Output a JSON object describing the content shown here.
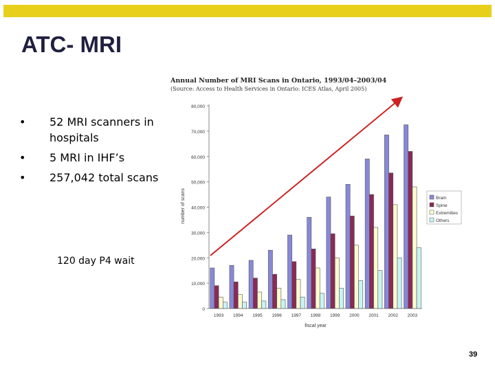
{
  "slide": {
    "title": "ATC- MRI",
    "bullets": [
      {
        "marker": "•",
        "text": "52 MRI scanners in hospitals"
      },
      {
        "marker": "•",
        "text": " 5 MRI in IHF’s"
      },
      {
        "marker": "•",
        "text": "257,042 total scans"
      }
    ],
    "note": "120  day P4 wait",
    "page_number": "39",
    "accent_color": "#e8cf1c",
    "title_color": "#1f1f3f"
  },
  "chart_data": {
    "type": "bar",
    "title": "Annual Number of MRI Scans in Ontario, 1993/04–2003/04",
    "subtitle": "(Source: Access to Health Services in Ontario: ICES Atlas, April 2005)",
    "xlabel": "fiscal year",
    "ylabel": "number of scans",
    "ylim": [
      0,
      80000
    ],
    "yticks": [
      "0",
      "10,000",
      "20,000",
      "30,000",
      "40,000",
      "50,000",
      "60,000",
      "70,000",
      "80,000"
    ],
    "categories": [
      "1993",
      "1994",
      "1995",
      "1996",
      "1997",
      "1998",
      "1999",
      "2000",
      "2001",
      "2002",
      "2003"
    ],
    "series": [
      {
        "name": "Brain",
        "color": "#8888d8",
        "values": [
          16000,
          17000,
          19000,
          23000,
          29000,
          36000,
          44000,
          49000,
          59000,
          68500,
          72500
        ]
      },
      {
        "name": "Spine",
        "color": "#8a2a55",
        "values": [
          9000,
          10500,
          12000,
          13500,
          18500,
          23500,
          29500,
          36500,
          45000,
          53500,
          62000
        ]
      },
      {
        "name": "Extremities",
        "color": "#fbfbd0",
        "values": [
          4500,
          5500,
          6500,
          8000,
          11500,
          16000,
          20000,
          25000,
          32000,
          41000,
          48000
        ]
      },
      {
        "name": "Others",
        "color": "#c9f3f5",
        "values": [
          2500,
          2500,
          3000,
          3500,
          4500,
          6000,
          8000,
          11000,
          15000,
          20000,
          24000
        ]
      }
    ],
    "legend": "right",
    "grid": false,
    "trend_arrow_color": "#cc2222"
  }
}
